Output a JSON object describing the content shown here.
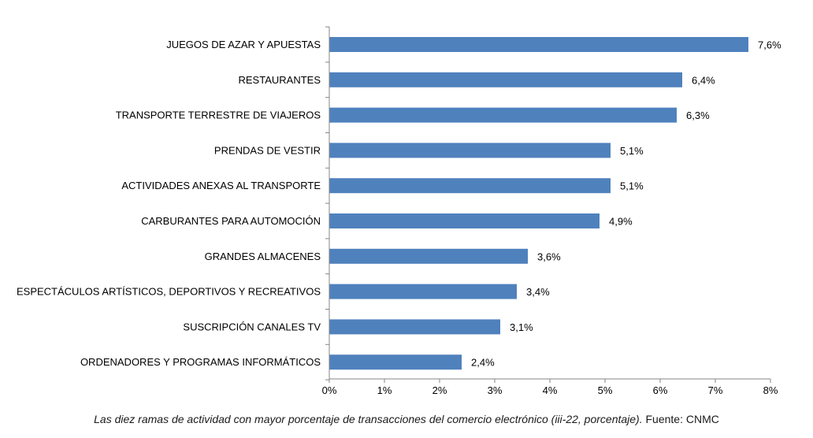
{
  "chart_data": {
    "type": "bar",
    "orientation": "horizontal",
    "categories": [
      "JUEGOS DE AZAR Y APUESTAS",
      "RESTAURANTES",
      "TRANSPORTE TERRESTRE DE VIAJEROS",
      "PRENDAS DE VESTIR",
      "ACTIVIDADES ANEXAS AL TRANSPORTE",
      "CARBURANTES PARA AUTOMOCIÓN",
      "GRANDES ALMACENES",
      "ESPECTÁCULOS ARTÍSTICOS, DEPORTIVOS Y RECREATIVOS",
      "SUSCRIPCIÓN CANALES TV",
      "ORDENADORES Y PROGRAMAS INFORMÁTICOS"
    ],
    "values": [
      7.6,
      6.4,
      6.3,
      5.1,
      5.1,
      4.9,
      3.6,
      3.4,
      3.1,
      2.4
    ],
    "data_labels": [
      "7,6%",
      "6,4%",
      "6,3%",
      "5,1%",
      "5,1%",
      "4,9%",
      "3,6%",
      "3,4%",
      "3,1%",
      "2,4%"
    ],
    "xlim": [
      0,
      8
    ],
    "x_ticks": [
      0,
      1,
      2,
      3,
      4,
      5,
      6,
      7,
      8
    ],
    "x_tick_labels": [
      "0%",
      "1%",
      "2%",
      "3%",
      "4%",
      "5%",
      "6%",
      "7%",
      "8%"
    ],
    "grid": false,
    "legend": "none",
    "bar_color": "#4f81bd",
    "axis_color": "#868686"
  },
  "caption": {
    "italic": "Las diez ramas de actividad con mayor porcentaje de transacciones del comercio electrónico (iii-22, porcentaje).",
    "source": " Fuente: CNMC"
  }
}
